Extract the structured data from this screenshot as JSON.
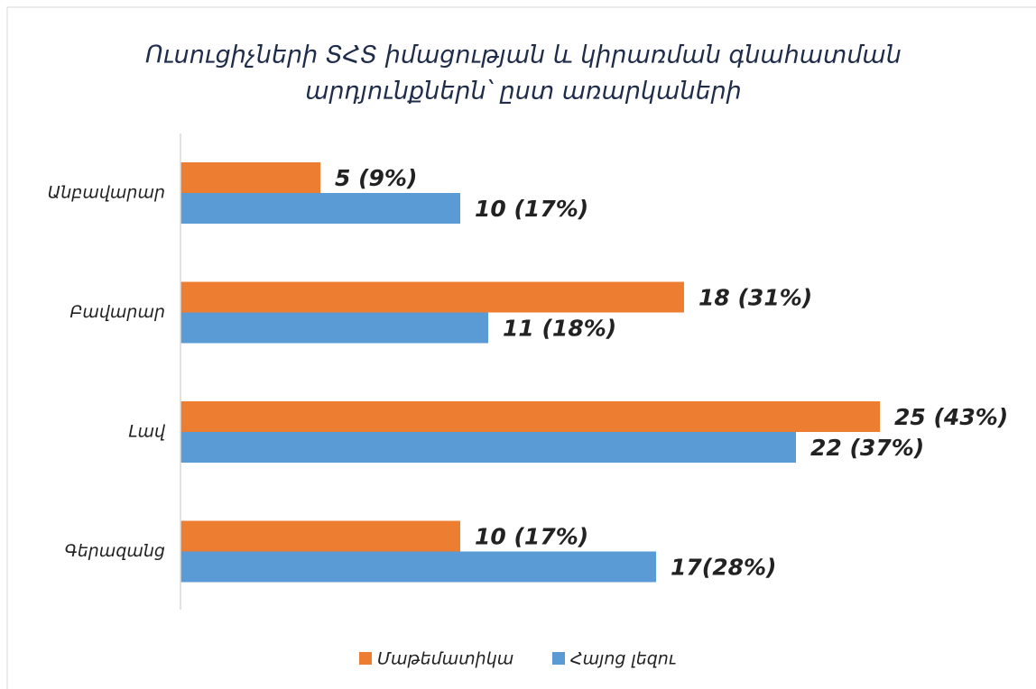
{
  "chart_data": {
    "type": "bar",
    "orientation": "horizontal",
    "title": [
      "Ուսուցիչների ՏՀՏ իմացության և կիրառման գնահատման",
      "արդյունքներն՝ ըստ առարկաների"
    ],
    "categories": [
      "Անբավարար",
      "Բավարար",
      "Լավ",
      "Գերազանց"
    ],
    "series": [
      {
        "name": "Մաթեմատիկա",
        "color": "#ed7d31",
        "values": [
          5,
          18,
          25,
          10
        ],
        "value_labels": [
          "5 (9%)",
          "18 (31%)",
          "25 (43%)",
          "10 (17%)"
        ]
      },
      {
        "name": "Հայոց լեզու",
        "color": "#5b9bd5",
        "values": [
          10,
          11,
          22,
          17
        ],
        "value_labels": [
          "10 (17%)",
          "11 (18%)",
          "22 (37%)",
          "17(28%)"
        ]
      }
    ],
    "legend": "bottom"
  }
}
